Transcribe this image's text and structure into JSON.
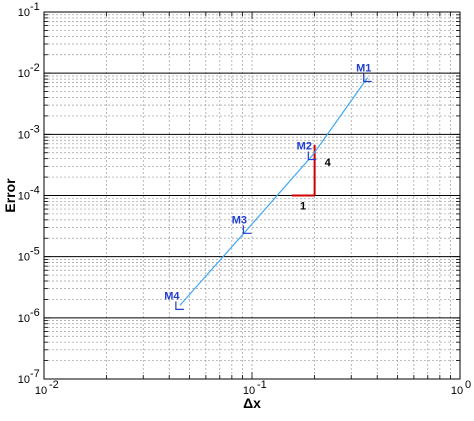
{
  "chart_data": {
    "type": "line",
    "xscale": "log",
    "yscale": "log",
    "xlim": [
      0.01,
      1
    ],
    "ylim": [
      1e-07,
      0.1
    ],
    "xlabel": "Δx",
    "ylabel": "Error",
    "grid": true,
    "x_ticks": [
      {
        "base": "10",
        "exp": "-2",
        "value": 0.01
      },
      {
        "base": "10",
        "exp": "-1",
        "value": 0.1
      },
      {
        "base": "10",
        "exp": "0",
        "value": 1
      }
    ],
    "y_ticks": [
      {
        "base": "10",
        "exp": "-7",
        "value": 1e-07
      },
      {
        "base": "10",
        "exp": "-6",
        "value": 1e-06
      },
      {
        "base": "10",
        "exp": "-5",
        "value": 1e-05
      },
      {
        "base": "10",
        "exp": "-4",
        "value": 0.0001
      },
      {
        "base": "10",
        "exp": "-3",
        "value": 0.001
      },
      {
        "base": "10",
        "exp": "-2",
        "value": 0.01
      },
      {
        "base": "10",
        "exp": "-1",
        "value": 0.1
      }
    ],
    "series": [
      {
        "color": "#3fa9f5",
        "marker_color": "#1f3fd1",
        "points": [
          {
            "label": "M1",
            "x": 0.36,
            "y": 0.0085
          },
          {
            "label": "M2",
            "x": 0.195,
            "y": 0.00045
          },
          {
            "label": "M3",
            "x": 0.095,
            "y": 2.8e-05
          },
          {
            "label": "M4",
            "x": 0.045,
            "y": 1.6e-06
          }
        ]
      }
    ],
    "slope_triangle": {
      "color": "#cc0000",
      "x0": 0.155,
      "x1": 0.2,
      "y0": 0.0001,
      "y1": 0.00067,
      "run_label": "1",
      "rise_label": "4"
    }
  }
}
